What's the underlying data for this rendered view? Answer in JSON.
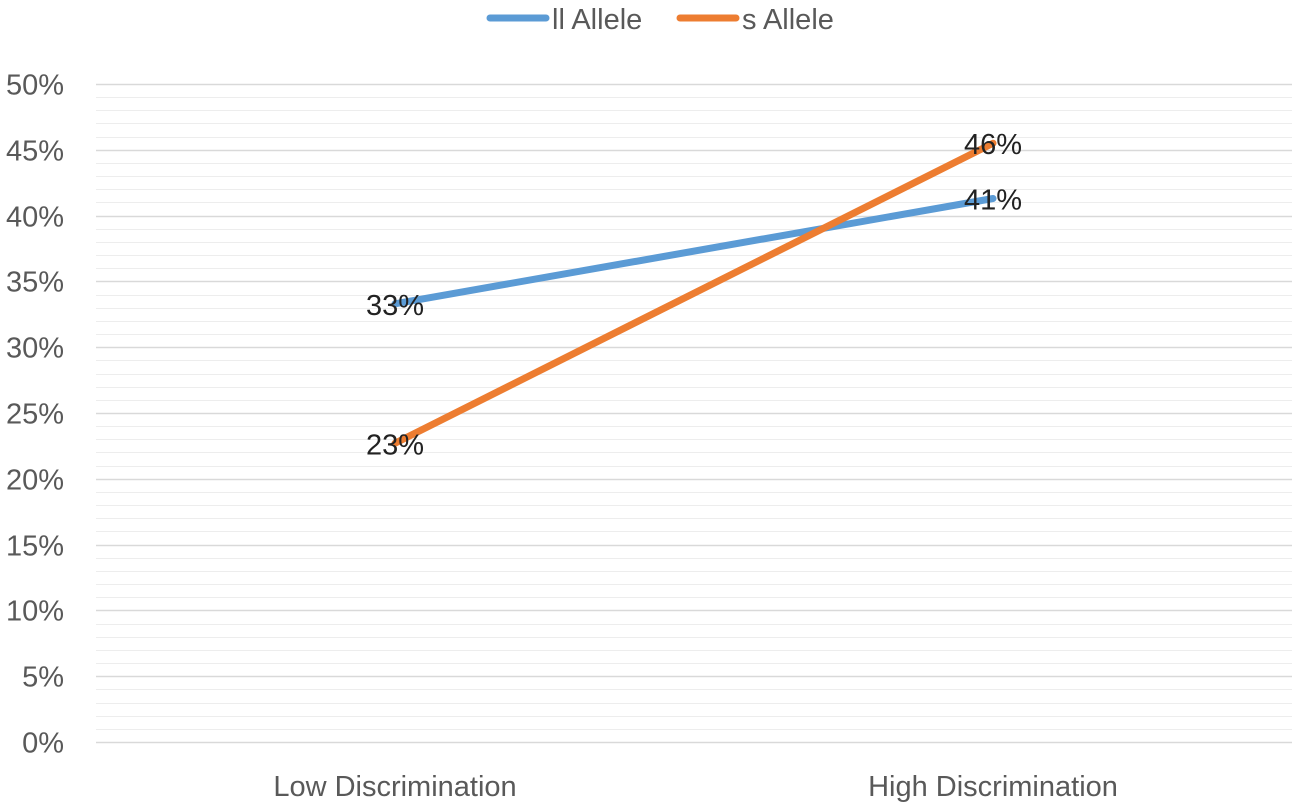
{
  "chart_data": {
    "type": "line",
    "title": "",
    "xlabel": "",
    "ylabel": "",
    "categories": [
      "Low Discrimination",
      "High Discrimination"
    ],
    "series": [
      {
        "name": "ll Allele",
        "values": [
          0.333,
          0.413
        ],
        "labels": [
          "33%",
          "41%"
        ],
        "color": "#5B9BD5"
      },
      {
        "name": "s Allele",
        "values": [
          0.227,
          0.455
        ],
        "labels": [
          "23%",
          "46%"
        ],
        "color": "#ED7D31"
      }
    ],
    "ylim": [
      0,
      0.5
    ],
    "yticks": [
      {
        "value": 0.0,
        "label": "0%"
      },
      {
        "value": 0.05,
        "label": "5%"
      },
      {
        "value": 0.1,
        "label": "10%"
      },
      {
        "value": 0.15,
        "label": "15%"
      },
      {
        "value": 0.2,
        "label": "20%"
      },
      {
        "value": 0.25,
        "label": "25%"
      },
      {
        "value": 0.3,
        "label": "30%"
      },
      {
        "value": 0.35,
        "label": "35%"
      },
      {
        "value": 0.4,
        "label": "40%"
      },
      {
        "value": 0.45,
        "label": "45%"
      },
      {
        "value": 0.5,
        "label": "50%"
      }
    ],
    "grid": true,
    "minor_grid": true,
    "legend": "top-center",
    "colors": {
      "major_grid": "#D9D9D9",
      "minor_grid": "#EDEDED",
      "text": "#595959"
    }
  }
}
